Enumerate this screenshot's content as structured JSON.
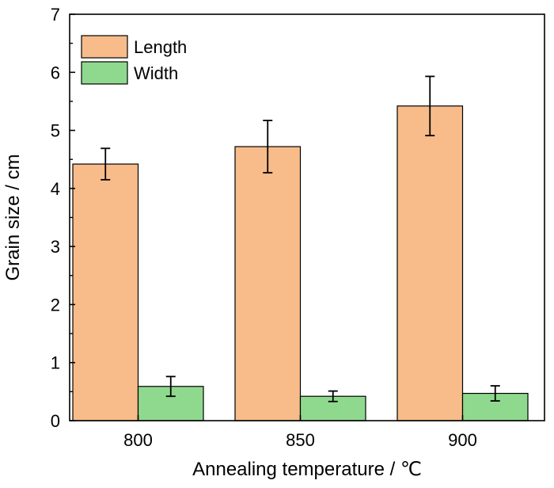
{
  "chart_data": {
    "type": "bar",
    "title": "",
    "xlabel": "Annealing temperature / ℃",
    "ylabel": "Grain size / cm",
    "categories": [
      "800",
      "850",
      "900"
    ],
    "ylim": [
      0,
      7
    ],
    "yticks": [
      "0",
      "1",
      "2",
      "3",
      "4",
      "5",
      "6",
      "7"
    ],
    "grid": false,
    "legend_position": "top-left",
    "series": [
      {
        "name": "Length",
        "color": "#F8BC8A",
        "values": [
          4.42,
          4.72,
          5.42
        ],
        "error": [
          0.27,
          0.45,
          0.51
        ]
      },
      {
        "name": "Width",
        "color": "#8FD98F",
        "values": [
          0.59,
          0.42,
          0.47
        ],
        "error": [
          0.17,
          0.09,
          0.13
        ]
      }
    ]
  }
}
